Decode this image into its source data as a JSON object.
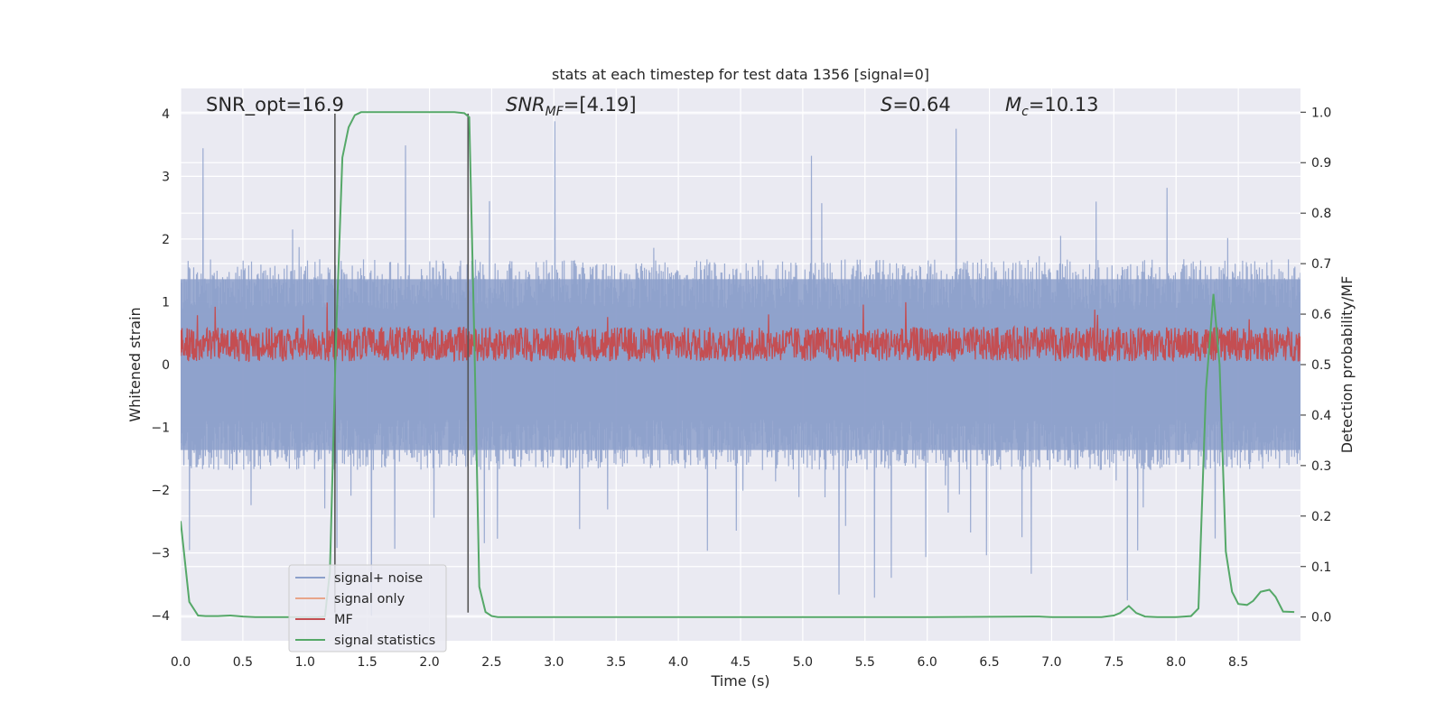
{
  "chart_data": {
    "type": "line",
    "title": "stats at each timestep for test data 1356 [signal=0]",
    "xlabel": "Time (s)",
    "ylabel_left": "Whitened strain",
    "ylabel_right": "Detection probability/MF",
    "xlim": [
      0.0,
      9.0
    ],
    "ylim_left": [
      -4.4,
      4.4
    ],
    "ylim_right": [
      -0.047,
      1.047
    ],
    "grid": true,
    "legend_position": "lower-left",
    "x_ticks": [
      "0.0",
      "0.5",
      "1.0",
      "1.5",
      "2.0",
      "2.5",
      "3.0",
      "3.5",
      "4.0",
      "4.5",
      "5.0",
      "5.5",
      "6.0",
      "6.5",
      "7.0",
      "7.5",
      "8.0",
      "8.5"
    ],
    "x_tick_values": [
      0.0,
      0.5,
      1.0,
      1.5,
      2.0,
      2.5,
      3.0,
      3.5,
      4.0,
      4.5,
      5.0,
      5.5,
      6.0,
      6.5,
      7.0,
      7.5,
      8.0,
      8.5
    ],
    "y_ticks_left": [
      "4",
      "3",
      "2",
      "1",
      "0",
      "−1",
      "−2",
      "−3",
      "−4"
    ],
    "y_tick_values_left": [
      4,
      3,
      2,
      1,
      0,
      -1,
      -2,
      -3,
      -4
    ],
    "y_ticks_right": [
      "1.0",
      "0.9",
      "0.8",
      "0.7",
      "0.6",
      "0.5",
      "0.4",
      "0.3",
      "0.2",
      "0.1",
      "0.0"
    ],
    "y_tick_values_right": [
      1.0,
      0.9,
      0.8,
      0.7,
      0.6,
      0.5,
      0.4,
      0.3,
      0.2,
      0.1,
      0.0
    ],
    "annotations": {
      "snr_opt": "SNR_opt=16.9",
      "snr_mf_main": "SNR",
      "snr_mf_sub": "MF",
      "snr_mf_value": "=[4.19]",
      "s_main": "S",
      "s_value": "=0.64",
      "mc_main": "M",
      "mc_sub": "c",
      "mc_value": "=10.13"
    },
    "vertical_markers_x": [
      1.24,
      2.31
    ],
    "series": [
      {
        "name": "signal+ noise",
        "color": "#8da0cb",
        "axis": "left",
        "description_values": "dense whitened noise, approx amplitude envelope",
        "envelope": {
          "typical_max": 1.6,
          "typical_min": -1.6,
          "peak_max": 3.9,
          "peak_min": -4.0
        }
      },
      {
        "name": "signal only",
        "color": "#e8a58a",
        "axis": "left",
        "x": [],
        "y": []
      },
      {
        "name": "MF",
        "color": "#c44e52",
        "axis": "left",
        "envelope": {
          "typical_max": 0.6,
          "typical_min": 0.05,
          "peak_max": 1.0,
          "peak_min": 0.0
        }
      },
      {
        "name": "signal statistics",
        "color": "#55a868",
        "axis": "right",
        "x": [
          0.0,
          0.07,
          0.14,
          0.2,
          0.3,
          0.4,
          0.5,
          0.6,
          0.8,
          1.0,
          1.1,
          1.16,
          1.2,
          1.25,
          1.3,
          1.35,
          1.4,
          1.45,
          1.5,
          1.6,
          1.8,
          2.0,
          2.2,
          2.28,
          2.32,
          2.36,
          2.4,
          2.45,
          2.5,
          2.55,
          2.6,
          3.0,
          4.0,
          5.0,
          6.0,
          6.9,
          7.0,
          7.4,
          7.5,
          7.55,
          7.62,
          7.68,
          7.75,
          7.85,
          8.0,
          8.12,
          8.18,
          8.24,
          8.3,
          8.35,
          8.4,
          8.45,
          8.5,
          8.57,
          8.62,
          8.68,
          8.75,
          8.8,
          8.86,
          8.95
        ],
        "y": [
          0.19,
          0.03,
          0.003,
          0.002,
          0.002,
          0.003,
          0.001,
          0.0,
          0.0,
          0.0,
          0.0,
          0.001,
          0.09,
          0.56,
          0.91,
          0.97,
          0.994,
          1.0,
          1.0,
          1.0,
          1.0,
          1.0,
          1.0,
          0.998,
          0.99,
          0.55,
          0.06,
          0.01,
          0.002,
          0.0,
          0.0,
          0.0,
          0.0,
          0.0,
          0.0,
          0.001,
          0.0,
          0.0,
          0.003,
          0.008,
          0.022,
          0.008,
          0.001,
          0.0,
          0.0,
          0.002,
          0.017,
          0.45,
          0.64,
          0.5,
          0.13,
          0.05,
          0.026,
          0.024,
          0.032,
          0.05,
          0.054,
          0.04,
          0.011,
          0.01
        ]
      }
    ]
  }
}
